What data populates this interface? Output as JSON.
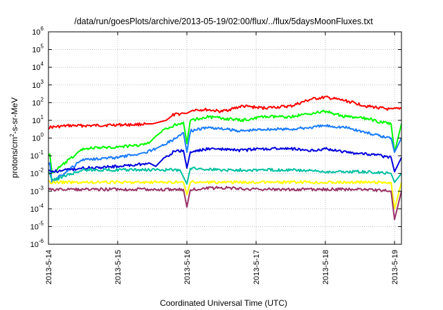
{
  "chart_data": {
    "type": "line",
    "title": "/data/run/goesPlots/archive/2013-05-19/02:00/flux/../flux/5daysMoonFluxes.txt",
    "xlabel": "Coordinated Universal Time (UTC)",
    "ylabel": "protons/cm2-s-sr-MeV",
    "yscale": "log",
    "ylim": [
      1e-06,
      1000000.0
    ],
    "xlim": [
      0,
      5.1
    ],
    "grid": true,
    "x_ticks": [
      "2013-5-14",
      "2013-5-15",
      "2013-5-16",
      "2013-5-17",
      "2013-5-18",
      "2013-5-19"
    ],
    "y_ticks": [
      -6,
      -5,
      -4,
      -3,
      -2,
      -1,
      0,
      1,
      2,
      3,
      4,
      5,
      6
    ],
    "series": [
      {
        "color": "#ff0000",
        "x": [
          0,
          0.3,
          0.6,
          1.0,
          1.2,
          1.4,
          1.5,
          1.6,
          1.7,
          1.8,
          1.95,
          2.0,
          2.1,
          2.3,
          2.5,
          2.8,
          3.1,
          3.5,
          3.8,
          4.0,
          4.3,
          4.6,
          4.8,
          4.95,
          5.1
        ],
        "y": [
          0.6,
          0.7,
          0.7,
          0.75,
          0.75,
          0.8,
          0.8,
          0.9,
          1.0,
          1.3,
          1.4,
          1.4,
          1.6,
          1.6,
          1.5,
          1.8,
          1.7,
          1.8,
          2.2,
          2.3,
          2.1,
          1.8,
          1.7,
          1.6,
          1.7
        ]
      },
      {
        "color": "#00ff00",
        "x": [
          0,
          0.02,
          0.05,
          0.5,
          1.0,
          1.3,
          1.45,
          1.55,
          1.65,
          1.8,
          1.95,
          2.0,
          2.05,
          2.3,
          2.8,
          3.1,
          3.5,
          3.8,
          4.0,
          4.3,
          4.6,
          4.8,
          4.95,
          5.0,
          5.1
        ],
        "y": [
          -1.0,
          -0.9,
          -2.0,
          -0.6,
          -0.5,
          -0.4,
          -0.3,
          0.1,
          0.4,
          0.7,
          0.9,
          -0.3,
          1.0,
          1.2,
          1.0,
          1.2,
          1.2,
          1.4,
          1.5,
          1.2,
          1.1,
          0.9,
          0.8,
          -0.8,
          0.8
        ]
      },
      {
        "color": "#1a7cff",
        "x": [
          0,
          0.02,
          0.05,
          0.5,
          1.0,
          1.3,
          1.4,
          1.55,
          1.65,
          1.8,
          1.95,
          2.0,
          2.05,
          2.3,
          2.8,
          3.1,
          3.5,
          3.8,
          4.0,
          4.3,
          4.6,
          4.8,
          4.95,
          5.0,
          5.1
        ],
        "y": [
          -1.5,
          -1.4,
          -2.5,
          -1.2,
          -1.1,
          -0.9,
          -0.8,
          -0.6,
          -0.4,
          -0.1,
          0.3,
          -0.8,
          0.4,
          0.6,
          0.4,
          0.5,
          0.5,
          0.6,
          0.7,
          0.6,
          0.3,
          0.1,
          0.0,
          -0.8,
          0.0
        ]
      },
      {
        "color": "#0000dd",
        "x": [
          0,
          0.05,
          0.5,
          1.0,
          1.3,
          1.45,
          1.55,
          1.65,
          1.8,
          1.95,
          2.0,
          2.05,
          2.3,
          2.8,
          3.1,
          3.5,
          3.8,
          4.0,
          4.3,
          4.6,
          4.8,
          4.95,
          5.0,
          5.1
        ],
        "y": [
          -1.8,
          -1.9,
          -1.7,
          -1.6,
          -1.5,
          -1.4,
          -1.6,
          -1.2,
          -0.8,
          -0.7,
          -1.7,
          -0.8,
          -0.6,
          -0.7,
          -0.6,
          -0.6,
          -0.7,
          -0.6,
          -0.8,
          -0.9,
          -1.0,
          -1.1,
          -1.9,
          -1.1
        ]
      },
      {
        "color": "#00c0a0",
        "x": [
          0,
          0.02,
          0.05,
          0.5,
          1.0,
          1.5,
          1.9,
          2.0,
          2.05,
          2.5,
          3.0,
          3.5,
          4.0,
          4.5,
          4.95,
          5.0,
          5.1
        ],
        "y": [
          -1.9,
          -2.0,
          -2.4,
          -1.8,
          -1.8,
          -1.8,
          -1.8,
          -2.6,
          -1.7,
          -1.8,
          -1.8,
          -1.8,
          -1.9,
          -1.9,
          -2.0,
          -2.5,
          -2.0
        ]
      },
      {
        "color": "#ffff00",
        "x": [
          0,
          0.5,
          1.0,
          1.5,
          1.95,
          2.0,
          2.05,
          2.5,
          3.0,
          3.5,
          4.0,
          4.5,
          4.95,
          5.0,
          5.1
        ],
        "y": [
          -2.5,
          -2.5,
          -2.5,
          -2.5,
          -2.5,
          -3.2,
          -2.5,
          -2.5,
          -2.5,
          -2.5,
          -2.5,
          -2.5,
          -2.5,
          -4.0,
          -2.5
        ]
      },
      {
        "color": "#993366",
        "x": [
          0,
          0.5,
          1.0,
          1.5,
          1.95,
          2.0,
          2.05,
          2.5,
          3.0,
          3.5,
          4.0,
          4.5,
          4.95,
          5.0,
          5.1
        ],
        "y": [
          -2.9,
          -2.9,
          -2.9,
          -2.9,
          -2.9,
          -3.9,
          -2.9,
          -2.8,
          -2.9,
          -2.9,
          -2.9,
          -2.9,
          -3.0,
          -4.6,
          -3.0
        ]
      }
    ]
  }
}
